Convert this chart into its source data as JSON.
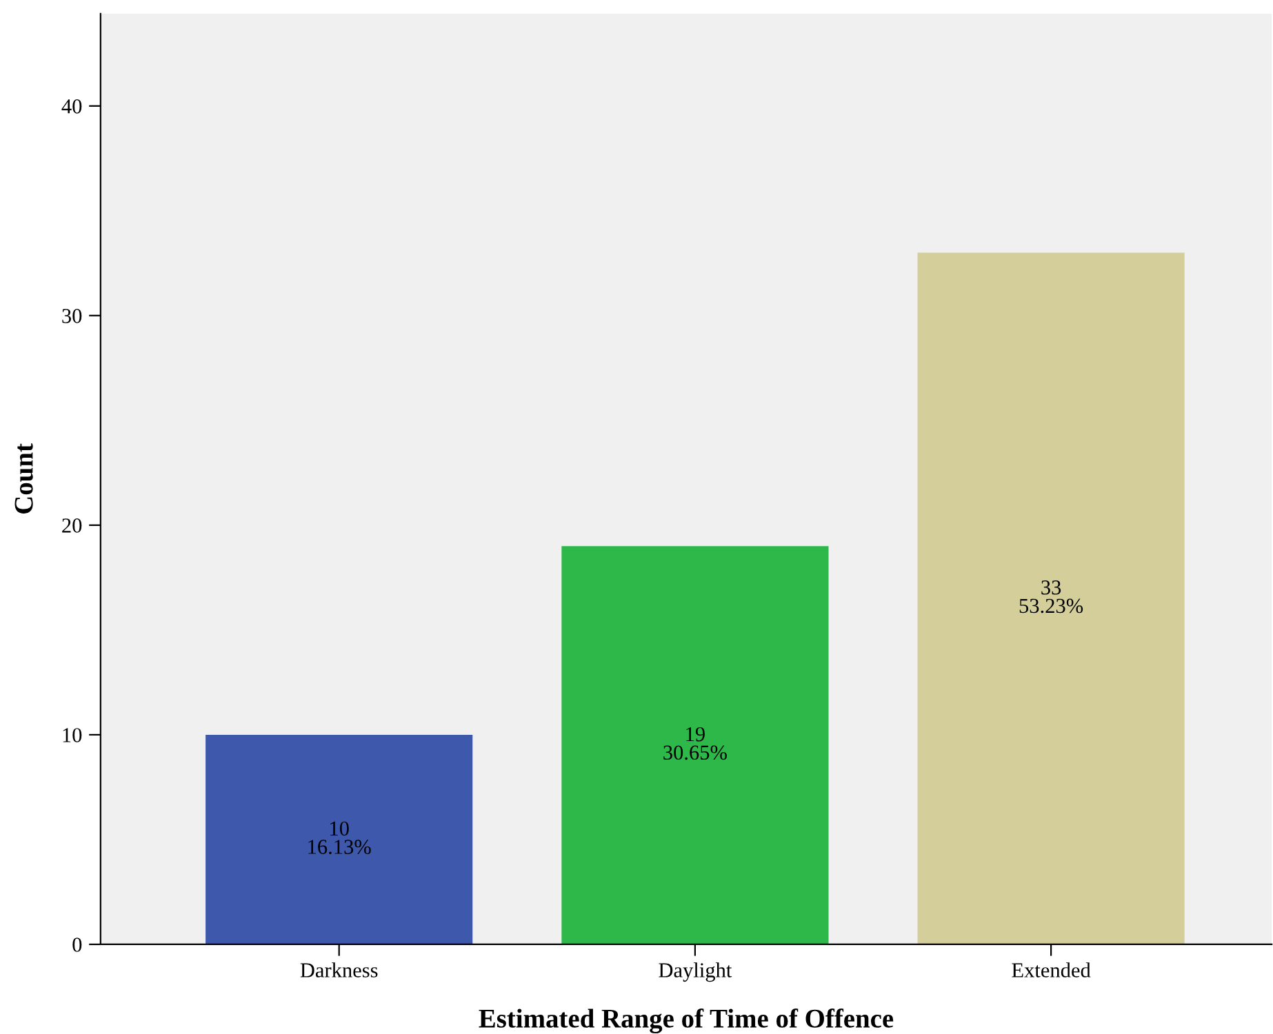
{
  "chart_data": {
    "type": "bar",
    "xlabel": "Estimated Range of Time of Offence",
    "ylabel": "Count",
    "categories": [
      "Darkness",
      "Daylight",
      "Extended"
    ],
    "values": [
      10,
      19,
      33
    ],
    "colors": [
      "#3e58ac",
      "#2fb84a",
      "#d4cf9a"
    ],
    "value_labels": [
      "10\n16.13%",
      "19\n30.65%",
      "33\n53.23%"
    ],
    "ylim": [
      0,
      44.4
    ],
    "yticks": [
      0,
      10,
      20,
      30,
      40
    ],
    "grid": false,
    "legend": false
  }
}
